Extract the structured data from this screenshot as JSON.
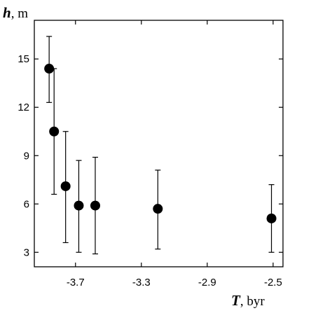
{
  "chart_data": {
    "type": "scatter",
    "title": "",
    "y_axis": {
      "variable": "h",
      "unit": ", m",
      "range": [
        2.1,
        17.4
      ],
      "ticks": [
        3,
        6,
        9,
        12,
        15
      ],
      "tick_labels": [
        "3",
        "6",
        "9",
        "12",
        "15"
      ]
    },
    "x_axis": {
      "variable": "T",
      "unit": ", byr",
      "range": [
        -3.95,
        -2.44
      ],
      "ticks": [
        -3.7,
        -3.3,
        -2.9,
        -2.5
      ],
      "tick_labels": [
        "-3.7",
        "-3.3",
        "-2.9",
        "-2.5"
      ]
    },
    "grid": false,
    "legend": "none",
    "marker_color": "#000000",
    "points": [
      {
        "x": -3.86,
        "y": 14.4,
        "err_low": 12.3,
        "err_high": 16.4
      },
      {
        "x": -3.83,
        "y": 10.5,
        "err_low": 6.6,
        "err_high": 14.4
      },
      {
        "x": -3.76,
        "y": 7.1,
        "err_low": 3.6,
        "err_high": 10.5
      },
      {
        "x": -3.68,
        "y": 5.9,
        "err_low": 3.0,
        "err_high": 8.7
      },
      {
        "x": -3.58,
        "y": 5.9,
        "err_low": 2.9,
        "err_high": 8.9
      },
      {
        "x": -3.2,
        "y": 5.7,
        "err_low": 3.2,
        "err_high": 8.1
      },
      {
        "x": -2.51,
        "y": 5.1,
        "err_low": 3.0,
        "err_high": 7.2
      }
    ]
  }
}
